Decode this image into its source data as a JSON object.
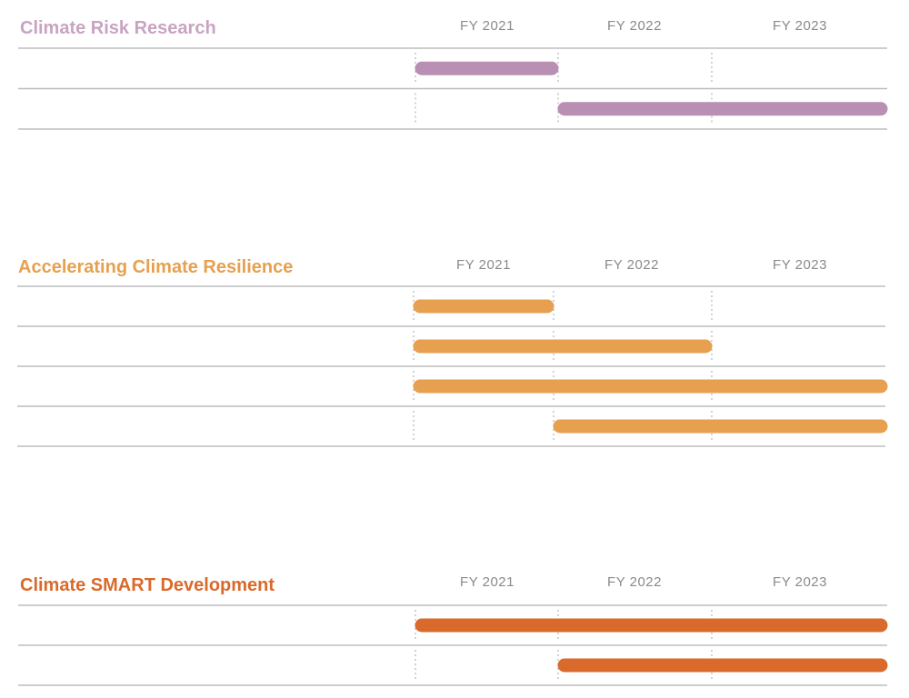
{
  "chart_data": [
    {
      "type": "gantt",
      "title": "Climate Risk Research",
      "color": "#b98fb3",
      "x": [
        "FY 2021",
        "FY 2022",
        "FY 2023"
      ],
      "bars": [
        {
          "start": 0,
          "end": 1
        },
        {
          "start": 1,
          "end": 3
        }
      ]
    },
    {
      "type": "gantt",
      "title": "Accelerating Climate Resilience",
      "color": "#e6a04f",
      "x": [
        "FY 2021",
        "FY 2022",
        "FY 2023"
      ],
      "bars": [
        {
          "start": 0,
          "end": 1
        },
        {
          "start": 0,
          "end": 2
        },
        {
          "start": 0,
          "end": 3
        },
        {
          "start": 1,
          "end": 3
        }
      ]
    },
    {
      "type": "gantt",
      "title": "Climate SMART Development",
      "color": "#d96a2b",
      "x": [
        "FY 2021",
        "FY 2022",
        "FY 2023"
      ],
      "bars": [
        {
          "start": 0,
          "end": 3
        },
        {
          "start": 1,
          "end": 3
        }
      ]
    }
  ]
}
